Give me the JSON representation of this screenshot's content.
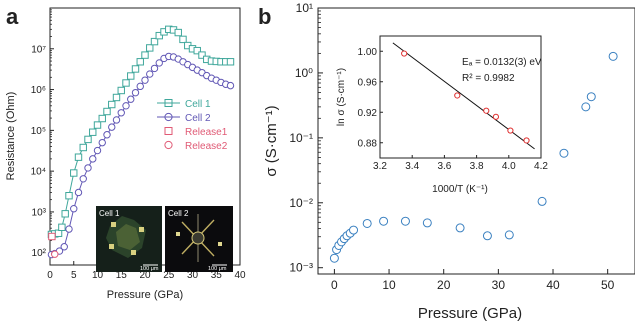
{
  "chart_data": [
    {
      "panel": "a",
      "type": "line",
      "xlabel": "Pressure (GPa)",
      "ylabel": "Resistance (Ohm)",
      "xlim": [
        0,
        40
      ],
      "ylim": [
        50,
        100000000
      ],
      "yscale": "log",
      "xticks": [
        "0",
        "5",
        "10",
        "15",
        "20",
        "25",
        "30",
        "35",
        "40"
      ],
      "yticks": [
        {
          "value": 100,
          "label": "10²"
        },
        {
          "value": 1000,
          "label": "10³"
        },
        {
          "value": 10000,
          "label": "10⁴"
        },
        {
          "value": 100000,
          "label": "10⁵"
        },
        {
          "value": 1000000,
          "label": "10⁶"
        },
        {
          "value": 10000000,
          "label": "10⁷"
        }
      ],
      "legend_position": "right",
      "legend": [
        "Cell 1",
        "Cell 2",
        "Release1",
        "Release2"
      ],
      "inset_labels": [
        "Cell 1",
        "Cell 2"
      ],
      "inset_scalebar": "100 μm",
      "series": [
        {
          "name": "Cell 1",
          "color": "#3fa79b",
          "marker": "square",
          "x": [
            0.3,
            1.0,
            1.8,
            2.5,
            3.2,
            4.0,
            5.0,
            6.0,
            7.0,
            8.0,
            9.0,
            10.0,
            11.0,
            12.0,
            13.0,
            14.0,
            15.0,
            16.0,
            17.0,
            18.0,
            19.0,
            20.0,
            21.0,
            22.0,
            23.0,
            24.0,
            25.0,
            26.0,
            27.0,
            28.0,
            29.0,
            30.0,
            31.0,
            32.0,
            33.0,
            34.0,
            35.0,
            36.0,
            37.0,
            38.0
          ],
          "y": [
            280,
            290,
            300,
            420,
            900,
            2500,
            9000,
            22000,
            38000,
            60000,
            90000,
            135000,
            195000,
            290000,
            430000,
            640000,
            950000,
            1450000,
            2150000,
            3200000,
            4800000,
            7000000,
            10500000,
            15000000,
            21000000,
            26000000,
            30000000,
            29000000,
            25000000,
            17000000,
            12000000,
            10000000,
            9000000,
            7000000,
            5500000,
            5000000,
            4900000,
            4800000,
            4800000,
            4800000
          ]
        },
        {
          "name": "Cell 2",
          "color": "#6157b5",
          "marker": "circle",
          "x": [
            0.3,
            1.0,
            2.0,
            3.0,
            4.0,
            5.0,
            6.0,
            7.0,
            8.0,
            9.0,
            10.0,
            11.0,
            12.0,
            13.0,
            14.0,
            15.0,
            16.0,
            17.0,
            18.0,
            19.0,
            20.0,
            21.0,
            22.0,
            23.0,
            24.0,
            25.0,
            26.0,
            27.0,
            28.0,
            29.0,
            30.0,
            31.0,
            32.0,
            33.0,
            34.0,
            35.0,
            36.0,
            37.0,
            38.0
          ],
          "y": [
            90,
            95,
            110,
            140,
            380,
            1200,
            3000,
            6500,
            12000,
            20000,
            32000,
            50000,
            78000,
            120000,
            180000,
            270000,
            400000,
            580000,
            840000,
            1200000,
            1700000,
            2400000,
            3300000,
            4500000,
            5800000,
            6500000,
            6300000,
            5600000,
            4800000,
            4100000,
            3500000,
            3000000,
            2600000,
            2200000,
            1900000,
            1700000,
            1500000,
            1350000,
            1250000
          ]
        },
        {
          "name": "Release1",
          "color": "#e05a75",
          "marker": "square",
          "x": [
            0.4
          ],
          "y": [
            250
          ]
        },
        {
          "name": "Release2",
          "color": "#e05a75",
          "marker": "circle",
          "x": [
            1.0
          ],
          "y": [
            92
          ]
        }
      ]
    },
    {
      "panel": "b",
      "type": "scatter",
      "xlabel": "Pressure (GPa)",
      "ylabel": "σ (S·cm⁻¹)",
      "xlim": [
        -3,
        55
      ],
      "ylim": [
        0.0008,
        10
      ],
      "yscale": "log",
      "xticks": [
        "0",
        "10",
        "20",
        "30",
        "40",
        "50"
      ],
      "yticks": [
        {
          "value": 0.001,
          "label": "10⁻³"
        },
        {
          "value": 0.01,
          "label": "10⁻²"
        },
        {
          "value": 0.1,
          "label": "10⁻¹"
        },
        {
          "value": 1,
          "label": "10⁰"
        },
        {
          "value": 10,
          "label": "10¹"
        }
      ],
      "series": [
        {
          "color": "#3a80c0",
          "marker": "circle-open",
          "x": [
            0.0,
            0.4,
            0.8,
            1.3,
            1.8,
            2.3,
            2.9,
            3.5,
            6.0,
            9.0,
            13.0,
            17.0,
            23.0,
            28.0,
            32.0,
            38.0,
            42.0,
            46.0,
            47.0,
            51.0
          ],
          "y": [
            0.0014,
            0.0019,
            0.0022,
            0.0025,
            0.0028,
            0.0031,
            0.0034,
            0.0038,
            0.0048,
            0.0052,
            0.0052,
            0.0049,
            0.0041,
            0.0031,
            0.0032,
            0.0105,
            0.058,
            0.3,
            0.43,
            1.8
          ]
        }
      ],
      "inset": {
        "type": "scatter",
        "xlabel": "1000/T (K⁻¹)",
        "ylabel": "ln σ (S·cm⁻¹)",
        "xlim": [
          3.2,
          4.2
        ],
        "ylim": [
          0.86,
          1.02
        ],
        "xticks": [
          "3.2",
          "3.4",
          "3.6",
          "3.8",
          "4.0",
          "4.2"
        ],
        "yticks": [
          "0.88",
          "0.92",
          "0.96",
          "1.00"
        ],
        "annotation_ea": "Eₐ = 0.0132(3) eV",
        "annotation_r2": "R² = 0.9982",
        "point_color": "#e03030",
        "points": {
          "x": [
            3.35,
            3.68,
            3.86,
            3.92,
            4.01,
            4.11
          ],
          "y": [
            0.997,
            0.942,
            0.922,
            0.914,
            0.896,
            0.883
          ]
        },
        "fit": {
          "x": [
            3.28,
            4.16
          ],
          "y": [
            1.011,
            0.872
          ]
        }
      }
    }
  ]
}
